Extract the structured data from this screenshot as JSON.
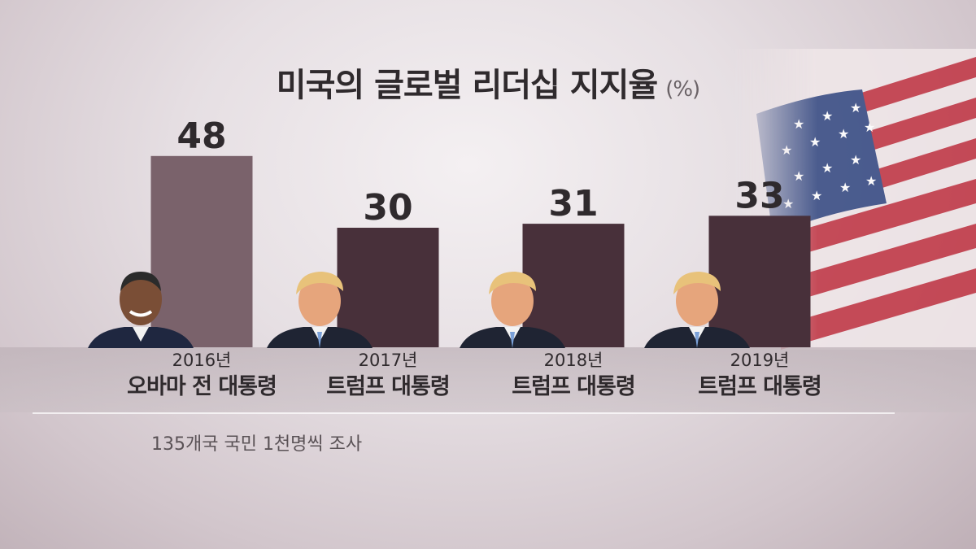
{
  "title": "미국의 글로벌 리더십 지지율",
  "unit": "(%)",
  "note": "135개국 국민 1천명씩 조사",
  "colors": {
    "highlight": "#7a626b",
    "bar": "#48303a",
    "text": "#2f2a2d"
  },
  "chart_data": {
    "type": "bar",
    "title": "미국의 글로벌 리더십 지지율",
    "ylabel": "(%)",
    "categories": [
      "2016년",
      "2017년",
      "2018년",
      "2019년"
    ],
    "category_sublabels": [
      "오바마 전 대통령",
      "트럼프 대통령",
      "트럼프 대통령",
      "트럼프 대통령"
    ],
    "values": [
      48,
      30,
      31,
      33
    ],
    "value_labels": [
      "48",
      "30",
      "31",
      "33"
    ],
    "ylim": [
      0,
      55
    ],
    "grid": false,
    "legend": "none"
  }
}
